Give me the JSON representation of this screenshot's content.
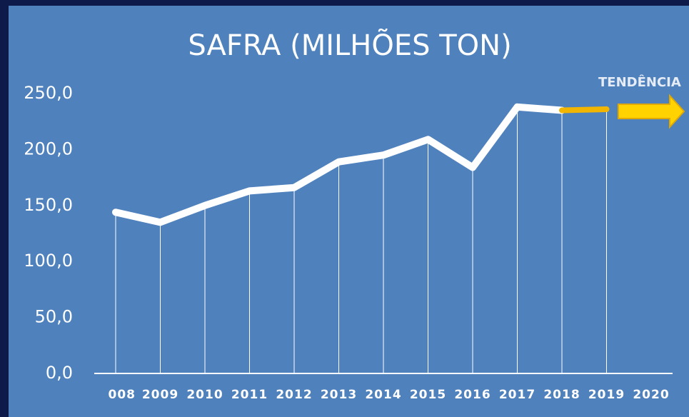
{
  "chart_data": {
    "type": "line",
    "title": "SAFRA (MILHÕES TON)",
    "annotation": "TENDÊNCIA",
    "categories": [
      "008",
      "2009",
      "2010",
      "2011",
      "2012",
      "2013",
      "2014",
      "2015",
      "2016",
      "2017",
      "2018",
      "2019",
      "2020"
    ],
    "series": [
      {
        "color": "#ffffff",
        "values": [
          144,
          135,
          150,
          163,
          166,
          189,
          195,
          209,
          184,
          238,
          235,
          null,
          null
        ]
      },
      {
        "color": "#f2b600",
        "values": [
          null,
          null,
          null,
          null,
          null,
          null,
          null,
          null,
          null,
          null,
          235,
          236,
          null
        ]
      }
    ],
    "ylim": [
      0,
      250
    ],
    "yticks": [
      {
        "value": 0,
        "label": "0,0"
      },
      {
        "value": 50,
        "label": "50,0"
      },
      {
        "value": 100,
        "label": "100,0"
      },
      {
        "value": 150,
        "label": "150,0"
      },
      {
        "value": 200,
        "label": "200,0"
      },
      {
        "value": 250,
        "label": "250,0"
      }
    ]
  }
}
